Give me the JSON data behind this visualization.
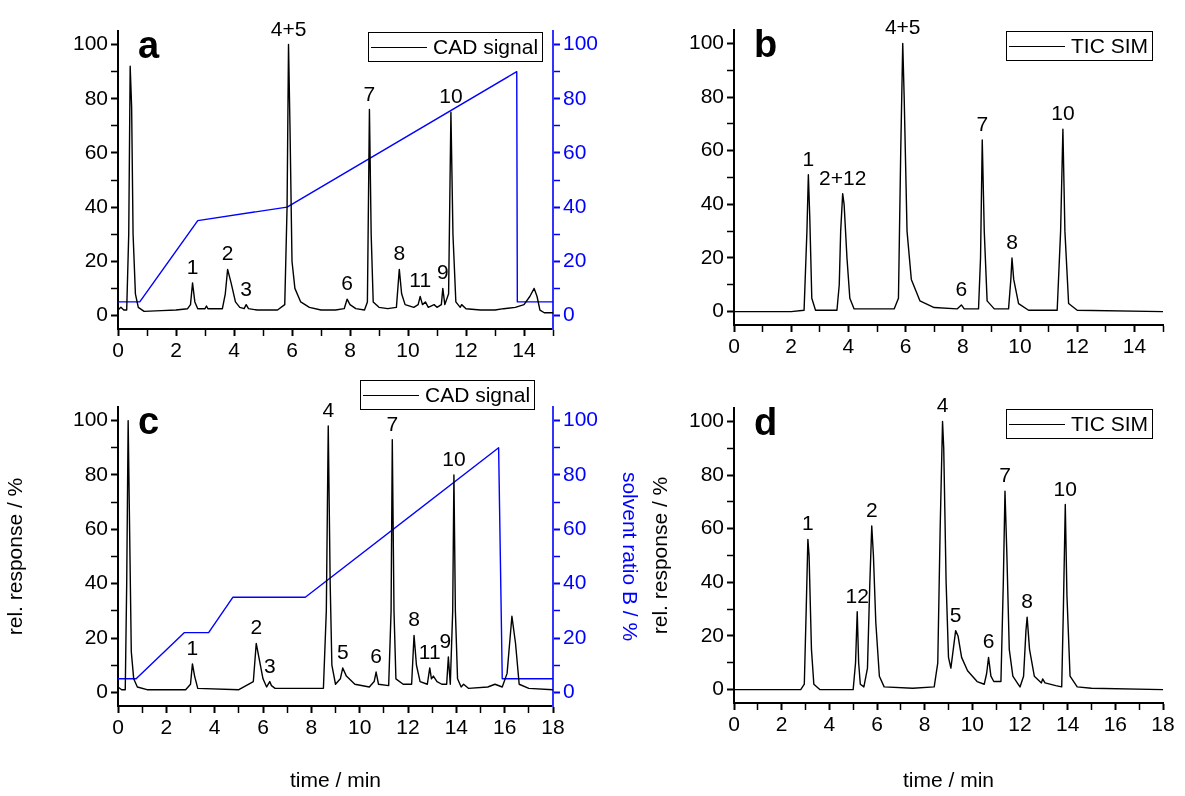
{
  "chart_data": [
    {
      "type": "line",
      "title": "a",
      "xlim": [
        0,
        15
      ],
      "xticks": [
        0,
        {
          "value": 1,
          "label": null
        },
        2,
        {
          "value": 3,
          "label": null
        },
        4,
        {
          "value": 5,
          "label": null
        },
        6,
        {
          "value": 7,
          "label": null
        },
        8,
        {
          "value": 9,
          "label": null
        },
        10,
        {
          "value": 11,
          "label": null
        },
        12,
        {
          "value": 13,
          "label": null
        },
        14,
        {
          "value": 15,
          "label": null
        }
      ],
      "ylim": [
        -5,
        105
      ],
      "yticks": [
        0,
        {
          "value": 10,
          "label": null
        },
        20,
        {
          "value": 30,
          "label": null
        },
        40,
        {
          "value": 50,
          "label": null
        },
        60,
        {
          "value": 70,
          "label": null
        },
        80,
        {
          "value": 90,
          "label": null
        },
        100
      ],
      "y2lim": [
        -5,
        105
      ],
      "y2ticks": [
        0,
        {
          "value": 10,
          "label": null
        },
        20,
        {
          "value": 30,
          "label": null
        },
        40,
        {
          "value": 50,
          "label": null
        },
        60,
        {
          "value": 70,
          "label": null
        },
        80,
        {
          "value": 90,
          "label": null
        },
        100
      ],
      "legend": "top right",
      "series": [
        {
          "name": "CAD signal",
          "color": "#000000",
          "x": [
            0,
            0.1,
            0.2,
            0.3,
            0.37,
            0.42,
            0.47,
            0.52,
            0.6,
            0.7,
            0.9,
            1.5,
            2.0,
            2.4,
            2.5,
            2.57,
            2.65,
            2.75,
            3.0,
            3.05,
            3.1,
            3.6,
            3.7,
            3.78,
            3.9,
            4.05,
            4.2,
            4.35,
            4.42,
            4.5,
            4.8,
            5.0,
            5.5,
            5.75,
            5.83,
            5.88,
            5.93,
            6.0,
            6.1,
            6.3,
            6.6,
            7.0,
            7.5,
            7.8,
            7.9,
            8.0,
            8.2,
            8.5,
            8.6,
            8.67,
            8.73,
            8.8,
            9.0,
            9.3,
            9.6,
            9.7,
            9.78,
            9.9,
            10.2,
            10.35,
            10.42,
            10.5,
            10.6,
            10.7,
            10.9,
            11.0,
            11.15,
            11.2,
            11.27,
            11.4,
            11.48,
            11.55,
            11.65,
            11.8,
            11.85,
            12.0,
            12.5,
            13.0,
            13.3,
            13.7,
            14.0,
            14.2,
            14.35,
            14.45,
            14.55,
            14.7,
            15
          ],
          "values": [
            2,
            3,
            2,
            2,
            30,
            92,
            77,
            30,
            8,
            3,
            1.5,
            1.8,
            2,
            2.5,
            4,
            12,
            5,
            2.5,
            2.5,
            3.5,
            2.5,
            2.5,
            8,
            17,
            12,
            5,
            3,
            2.5,
            4,
            2.5,
            2,
            2,
            2,
            4,
            40,
            100,
            70,
            20,
            10,
            5,
            3,
            2,
            2,
            2.5,
            6,
            4,
            2.5,
            2,
            5,
            76,
            30,
            5,
            3,
            2.5,
            3,
            17,
            8,
            4,
            3,
            4,
            7,
            4,
            5,
            3,
            4,
            3,
            4,
            10,
            4,
            8,
            75,
            30,
            5,
            3,
            4,
            2.5,
            2,
            2,
            2.5,
            3,
            4,
            7,
            10,
            7,
            2,
            1,
            1
          ]
        },
        {
          "color": "#0000ff",
          "axis": "y2",
          "x": [
            0,
            0.75,
            2.75,
            5.83,
            13.75,
            13.77,
            15
          ],
          "values": [
            5,
            5,
            35,
            40,
            90,
            5,
            5
          ]
        }
      ],
      "annotations": [
        {
          "text": "1",
          "x": 2.57,
          "y": 12
        },
        {
          "text": "2",
          "x": 3.78,
          "y": 17
        },
        {
          "text": "3",
          "x": 4.42,
          "y": 4
        },
        {
          "text": "4+5",
          "x": 5.88,
          "y": 100
        },
        {
          "text": "6",
          "x": 7.9,
          "y": 6
        },
        {
          "text": "7",
          "x": 8.67,
          "y": 76
        },
        {
          "text": "8",
          "x": 9.7,
          "y": 17
        },
        {
          "text": "11",
          "x": 10.42,
          "y": 7
        },
        {
          "text": "9",
          "x": 11.2,
          "y": 10
        },
        {
          "text": "10",
          "x": 11.48,
          "y": 75
        }
      ]
    },
    {
      "type": "line",
      "title": "b",
      "xlim": [
        0,
        15
      ],
      "xticks": [
        0,
        {
          "value": 1,
          "label": null
        },
        2,
        {
          "value": 3,
          "label": null
        },
        4,
        {
          "value": 5,
          "label": null
        },
        6,
        {
          "value": 7,
          "label": null
        },
        8,
        {
          "value": 9,
          "label": null
        },
        10,
        {
          "value": 11,
          "label": null
        },
        12,
        {
          "value": 13,
          "label": null
        },
        14,
        {
          "value": 15,
          "label": null
        }
      ],
      "ylim": [
        -5,
        105
      ],
      "yticks": [
        0,
        {
          "value": 10,
          "label": null
        },
        20,
        {
          "value": 30,
          "label": null
        },
        40,
        {
          "value": 50,
          "label": null
        },
        60,
        {
          "value": 70,
          "label": null
        },
        80,
        {
          "value": 90,
          "label": null
        },
        100
      ],
      "legend": "top right",
      "series": [
        {
          "name": "TIC SIM",
          "color": "#000000",
          "x": [
            0,
            2.0,
            2.45,
            2.55,
            2.6,
            2.65,
            2.72,
            2.85,
            3.6,
            3.68,
            3.73,
            3.8,
            3.85,
            3.95,
            4.05,
            4.2,
            5.6,
            5.75,
            5.83,
            5.9,
            5.95,
            6.05,
            6.2,
            6.5,
            7.0,
            7.8,
            7.95,
            8.05,
            8.55,
            8.62,
            8.68,
            8.75,
            8.85,
            9.1,
            9.6,
            9.68,
            9.72,
            9.78,
            9.95,
            10.3,
            11.3,
            11.42,
            11.5,
            11.57,
            11.7,
            12.0,
            15
          ],
          "values": [
            0,
            0,
            0.5,
            30,
            51,
            35,
            5,
            0.5,
            0.5,
            10,
            30,
            44,
            40,
            20,
            5,
            1,
            1,
            5,
            60,
            100,
            80,
            30,
            12,
            4,
            1.5,
            1,
            2.5,
            1,
            1,
            20,
            64,
            30,
            4,
            1,
            1,
            12,
            20,
            12,
            3,
            0.5,
            0.5,
            30,
            68,
            30,
            3,
            0.5,
            0
          ]
        }
      ],
      "annotations": [
        {
          "text": "1",
          "x": 2.6,
          "y": 51
        },
        {
          "text": "2+12",
          "x": 3.8,
          "y": 44
        },
        {
          "text": "4+5",
          "x": 5.9,
          "y": 100
        },
        {
          "text": "6",
          "x": 7.95,
          "y": 2.5
        },
        {
          "text": "7",
          "x": 8.68,
          "y": 64
        },
        {
          "text": "8",
          "x": 9.72,
          "y": 20
        },
        {
          "text": "10",
          "x": 11.5,
          "y": 68
        }
      ]
    },
    {
      "type": "line",
      "title": "c",
      "xlabel": "time / min",
      "ylabel": "rel. response / %",
      "y2label": "solvent ratio B / %",
      "xlim": [
        0,
        18
      ],
      "xticks": [
        0,
        {
          "value": 1,
          "label": null
        },
        2,
        {
          "value": 3,
          "label": null
        },
        4,
        {
          "value": 5,
          "label": null
        },
        6,
        {
          "value": 7,
          "label": null
        },
        8,
        {
          "value": 9,
          "label": null
        },
        10,
        {
          "value": 11,
          "label": null
        },
        12,
        {
          "value": 13,
          "label": null
        },
        14,
        {
          "value": 15,
          "label": null
        },
        16,
        {
          "value": 17,
          "label": null
        },
        18
      ],
      "ylim": [
        -5,
        105
      ],
      "yticks": [
        0,
        {
          "value": 10,
          "label": null
        },
        20,
        {
          "value": 30,
          "label": null
        },
        40,
        {
          "value": 50,
          "label": null
        },
        60,
        {
          "value": 70,
          "label": null
        },
        80,
        {
          "value": 90,
          "label": null
        },
        100
      ],
      "y2lim": [
        -5,
        105
      ],
      "y2ticks": [
        0,
        {
          "value": 10,
          "label": null
        },
        20,
        {
          "value": 30,
          "label": null
        },
        40,
        {
          "value": 50,
          "label": null
        },
        60,
        {
          "value": 70,
          "label": null
        },
        80,
        {
          "value": 90,
          "label": null
        },
        100
      ],
      "legend": "top",
      "series": [
        {
          "name": "CAD signal",
          "color": "#000000",
          "x": [
            0,
            0.15,
            0.3,
            0.36,
            0.42,
            0.48,
            0.55,
            0.65,
            0.8,
            1.2,
            2.8,
            3.0,
            3.08,
            3.17,
            3.3,
            5.0,
            5.6,
            5.72,
            5.85,
            6.0,
            6.15,
            6.28,
            6.35,
            6.5,
            8.5,
            8.62,
            8.7,
            8.78,
            8.85,
            9.0,
            9.2,
            9.3,
            9.45,
            9.8,
            10.4,
            10.6,
            10.68,
            10.78,
            11.2,
            11.3,
            11.35,
            11.42,
            11.5,
            11.8,
            12.15,
            12.25,
            12.35,
            12.5,
            12.8,
            12.9,
            12.97,
            13.05,
            13.2,
            13.4,
            13.6,
            13.67,
            13.75,
            13.85,
            13.9,
            13.96,
            14.05,
            14.2,
            14.3,
            14.5,
            15.3,
            15.6,
            15.9,
            16.1,
            16.3,
            16.45,
            16.6,
            17,
            18
          ],
          "values": [
            2,
            1,
            1,
            40,
            100,
            60,
            15,
            5,
            2,
            1,
            1,
            3,
            10.5,
            6,
            1.5,
            1,
            4,
            18,
            12,
            5,
            2,
            4,
            2.5,
            1.5,
            1.5,
            30,
            98,
            40,
            10,
            3,
            5,
            9,
            6,
            3,
            2,
            4,
            7.5,
            3,
            2.5,
            30,
            93,
            30,
            5,
            3,
            3,
            21,
            10,
            4,
            3,
            9,
            5,
            6,
            4,
            3,
            3,
            13,
            3,
            30,
            80,
            30,
            5,
            2,
            3,
            1.5,
            2,
            3,
            2,
            7,
            28,
            18,
            3,
            1.5,
            1
          ]
        },
        {
          "color": "#0000ff",
          "axis": "y2",
          "x": [
            0,
            0.75,
            2.75,
            3.75,
            4.75,
            7.75,
            15.75,
            15.9,
            18
          ],
          "values": [
            5,
            5,
            22,
            22,
            35,
            35,
            90,
            5,
            5
          ]
        }
      ],
      "annotations": [
        {
          "text": "1",
          "x": 3.08,
          "y": 10.5
        },
        {
          "text": "2",
          "x": 5.72,
          "y": 18
        },
        {
          "text": "3",
          "x": 6.28,
          "y": 4
        },
        {
          "text": "4",
          "x": 8.7,
          "y": 98
        },
        {
          "text": "5",
          "x": 9.3,
          "y": 9
        },
        {
          "text": "6",
          "x": 10.68,
          "y": 7.5
        },
        {
          "text": "7",
          "x": 11.35,
          "y": 93
        },
        {
          "text": "8",
          "x": 12.25,
          "y": 21
        },
        {
          "text": "11",
          "x": 12.9,
          "y": 9
        },
        {
          "text": "9",
          "x": 13.55,
          "y": 13
        },
        {
          "text": "10",
          "x": 13.9,
          "y": 80
        }
      ]
    },
    {
      "type": "line",
      "title": "d",
      "xlabel": "time / min",
      "ylabel": "rel. response / %",
      "xlim": [
        0,
        18
      ],
      "xticks": [
        0,
        {
          "value": 1,
          "label": null
        },
        2,
        {
          "value": 3,
          "label": null
        },
        4,
        {
          "value": 5,
          "label": null
        },
        6,
        {
          "value": 7,
          "label": null
        },
        8,
        {
          "value": 9,
          "label": null
        },
        10,
        {
          "value": 11,
          "label": null
        },
        12,
        {
          "value": 13,
          "label": null
        },
        14,
        {
          "value": 15,
          "label": null
        },
        16,
        {
          "value": 17,
          "label": null
        },
        18
      ],
      "ylim": [
        -5,
        105
      ],
      "yticks": [
        0,
        {
          "value": 10,
          "label": null
        },
        20,
        {
          "value": 30,
          "label": null
        },
        40,
        {
          "value": 50,
          "label": null
        },
        60,
        {
          "value": 70,
          "label": null
        },
        80,
        {
          "value": 90,
          "label": null
        },
        100
      ],
      "legend": "top right",
      "series": [
        {
          "name": "TIC SIM",
          "color": "#000000",
          "x": [
            0,
            2.8,
            2.95,
            3.03,
            3.1,
            3.15,
            3.25,
            3.35,
            3.6,
            5.0,
            5.1,
            5.17,
            5.23,
            5.3,
            5.45,
            5.6,
            5.7,
            5.78,
            5.85,
            5.95,
            6.1,
            6.3,
            7.5,
            8.4,
            8.55,
            8.65,
            8.75,
            8.8,
            8.9,
            9.0,
            9.1,
            9.2,
            9.3,
            9.4,
            9.55,
            9.8,
            10.2,
            10.5,
            10.6,
            10.68,
            10.78,
            10.9,
            11.2,
            11.3,
            11.37,
            11.45,
            11.55,
            11.7,
            12.0,
            12.15,
            12.25,
            12.3,
            12.4,
            12.6,
            12.9,
            12.95,
            13.05,
            13.5,
            13.75,
            13.82,
            13.9,
            13.97,
            14.1,
            14.4,
            15,
            18
          ],
          "values": [
            0,
            0,
            2,
            30,
            56,
            50,
            15,
            2,
            0,
            0,
            10,
            29,
            10,
            2,
            1,
            8,
            40,
            61,
            50,
            25,
            5,
            1,
            0.5,
            1,
            10,
            60,
            100,
            90,
            40,
            12,
            8,
            15,
            22,
            20,
            12,
            7,
            3,
            2,
            6,
            12,
            5,
            3,
            3,
            40,
            74,
            50,
            15,
            5,
            1,
            5,
            22,
            27,
            15,
            5,
            2.5,
            4,
            2.5,
            1.5,
            1,
            30,
            69,
            35,
            5,
            1,
            0.5,
            0
          ]
        }
      ],
      "annotations": [
        {
          "text": "1",
          "x": 3.1,
          "y": 56
        },
        {
          "text": "12",
          "x": 5.17,
          "y": 29
        },
        {
          "text": "2",
          "x": 5.78,
          "y": 61
        },
        {
          "text": "4",
          "x": 8.75,
          "y": 100
        },
        {
          "text": "5",
          "x": 9.3,
          "y": 22
        },
        {
          "text": "6",
          "x": 10.68,
          "y": 12
        },
        {
          "text": "7",
          "x": 11.37,
          "y": 74
        },
        {
          "text": "8",
          "x": 12.3,
          "y": 27
        },
        {
          "text": "10",
          "x": 13.9,
          "y": 69
        }
      ]
    }
  ]
}
